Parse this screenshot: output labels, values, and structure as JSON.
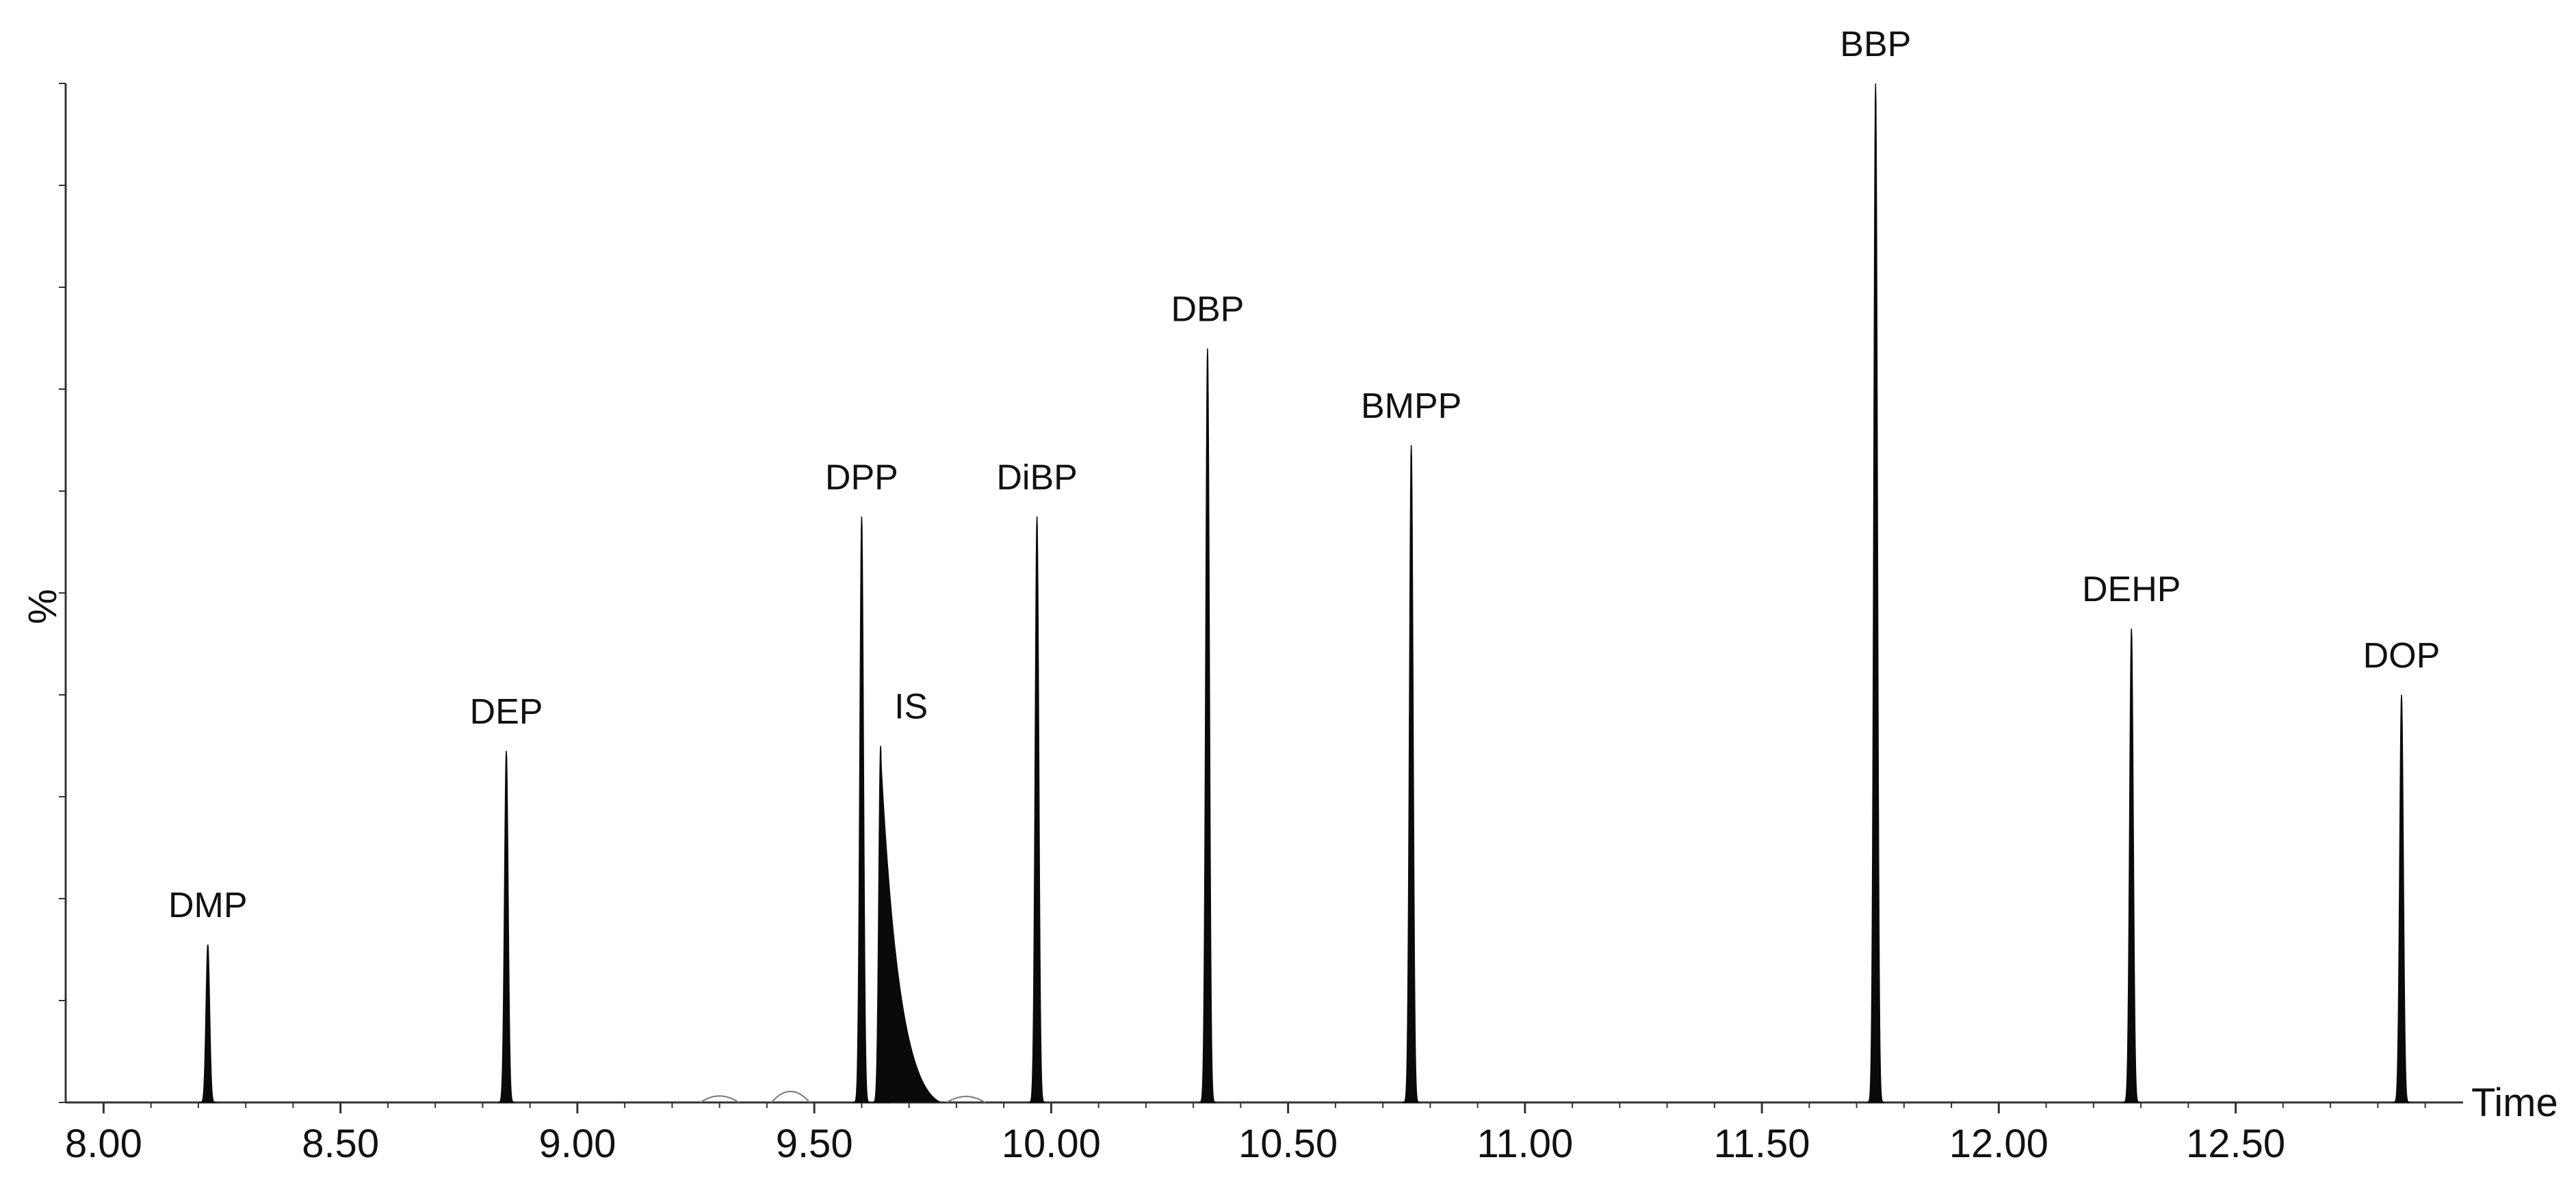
{
  "chart_data": {
    "type": "line",
    "title": "",
    "xlabel": "Time",
    "ylabel": "%",
    "xlim": [
      7.92,
      12.98
    ],
    "ylim": [
      0,
      100
    ],
    "grid": false,
    "x_ticks": [
      "8.00",
      "8.50",
      "9.00",
      "9.50",
      "10.00",
      "10.50",
      "11.00",
      "11.50",
      "12.00",
      "12.50"
    ],
    "y_minor_ticks": 10,
    "colors": {
      "peak_fill": "#0a0a0a",
      "axis": "#333333",
      "minor_trace": "#777777"
    },
    "peaks": [
      {
        "label": "DMP",
        "x": 8.22,
        "y": 15.5
      },
      {
        "label": "DEP",
        "x": 8.85,
        "y": 34.5
      },
      {
        "label": "DPP",
        "x": 9.6,
        "y": 57.5
      },
      {
        "label": "IS",
        "x": 9.64,
        "y": 35.0
      },
      {
        "label": "DiBP",
        "x": 9.97,
        "y": 57.5
      },
      {
        "label": "DBP",
        "x": 10.33,
        "y": 74.0
      },
      {
        "label": "BMPP",
        "x": 10.76,
        "y": 64.5
      },
      {
        "label": "BBP",
        "x": 11.74,
        "y": 100.0
      },
      {
        "label": "DEHP",
        "x": 12.28,
        "y": 46.5
      },
      {
        "label": "DOP",
        "x": 12.85,
        "y": 40.0
      }
    ],
    "minor_peaks": [
      {
        "x": 9.3,
        "y": 0.4
      },
      {
        "x": 9.45,
        "y": 1.3
      },
      {
        "x": 9.82,
        "y": 0.3
      }
    ]
  }
}
